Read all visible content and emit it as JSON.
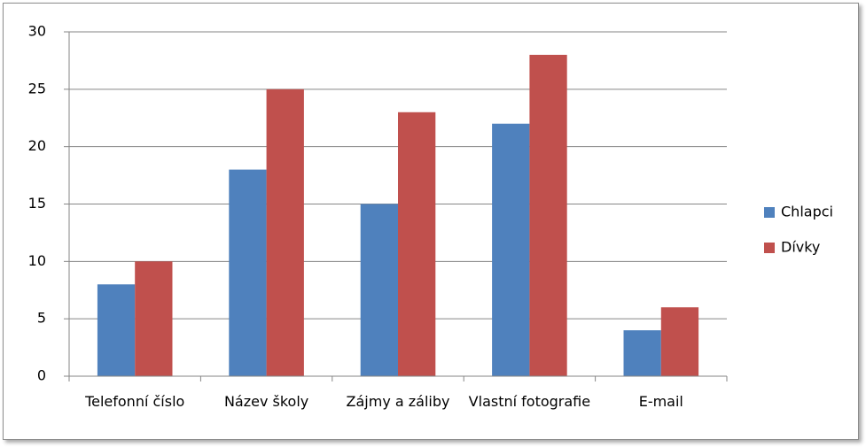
{
  "chart_data": {
    "type": "bar",
    "categories": [
      "Telefonní číslo",
      "Název školy",
      "Zájmy a záliby",
      "Vlastní fotografie",
      "E-mail"
    ],
    "series": [
      {
        "name": "Chlapci",
        "color": "#4f81bd",
        "values": [
          8,
          18,
          15,
          22,
          4
        ]
      },
      {
        "name": "Dívky",
        "color": "#c0504d",
        "values": [
          10,
          25,
          23,
          28,
          6
        ]
      }
    ],
    "ylim": [
      0,
      30
    ],
    "yticks": [
      0,
      5,
      10,
      15,
      20,
      25,
      30
    ],
    "grid": true,
    "legend": "right"
  }
}
